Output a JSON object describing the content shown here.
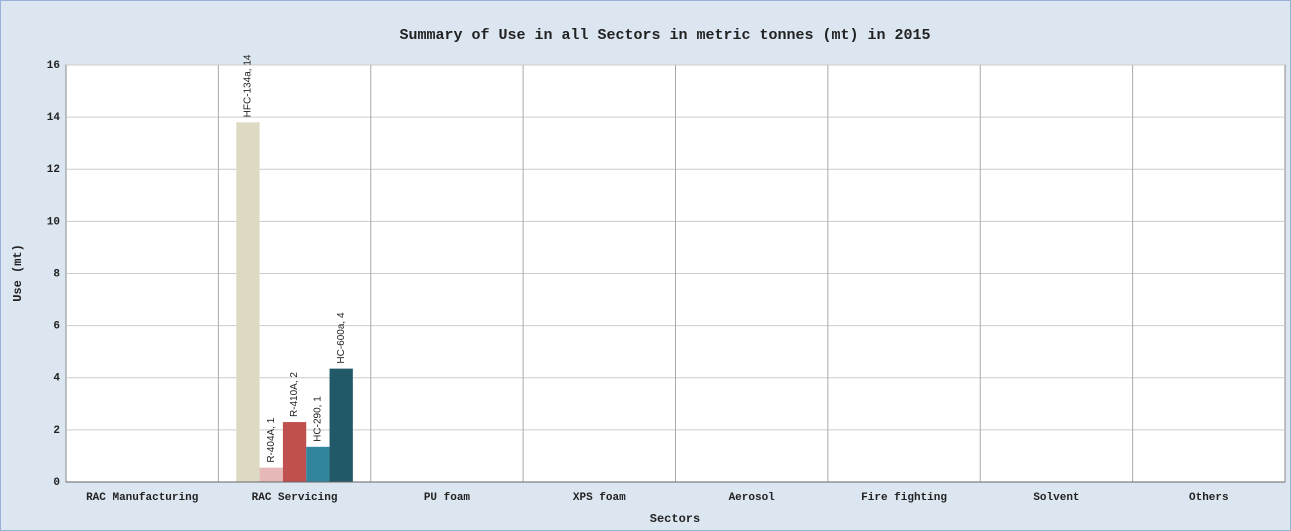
{
  "chart_data": {
    "type": "bar",
    "title": "Summary of Use in all Sectors in metric tonnes (mt) in 2015",
    "x_label": "Sectors",
    "y_label": "Use (mt)",
    "categories": [
      "RAC Manufacturing",
      "RAC Servicing",
      "PU foam",
      "XPS foam",
      "Aerosol",
      "Fire fighting",
      "Solvent",
      "Others"
    ],
    "series": [
      {
        "name": "HFC-134a",
        "color": "#ddd9c3",
        "values": [
          null,
          13.8,
          null,
          null,
          null,
          null,
          null,
          null
        ],
        "value_labels": [
          null,
          "HFC-134a, 14",
          null,
          null,
          null,
          null,
          null,
          null
        ]
      },
      {
        "name": "R-404A",
        "color": "#e6b9b8",
        "values": [
          null,
          0.55,
          null,
          null,
          null,
          null,
          null,
          null
        ],
        "value_labels": [
          null,
          "R-404A, 1",
          null,
          null,
          null,
          null,
          null,
          null
        ]
      },
      {
        "name": "R-410A",
        "color": "#c0504d",
        "values": [
          null,
          2.3,
          null,
          null,
          null,
          null,
          null,
          null
        ],
        "value_labels": [
          null,
          "R-410A, 2",
          null,
          null,
          null,
          null,
          null,
          null
        ]
      },
      {
        "name": "HC-290",
        "color": "#31859c",
        "values": [
          null,
          1.35,
          null,
          null,
          null,
          null,
          null,
          null
        ],
        "value_labels": [
          null,
          "HC-290, 1",
          null,
          null,
          null,
          null,
          null,
          null
        ]
      },
      {
        "name": "HC-600a",
        "color": "#215968",
        "values": [
          null,
          4.35,
          null,
          null,
          null,
          null,
          null,
          null
        ],
        "value_labels": [
          null,
          "HC-600a, 4",
          null,
          null,
          null,
          null,
          null,
          null
        ]
      }
    ],
    "ylim": [
      0,
      16
    ],
    "yticks": [
      0,
      2,
      4,
      6,
      8,
      10,
      12,
      14,
      16
    ],
    "grid": true
  }
}
